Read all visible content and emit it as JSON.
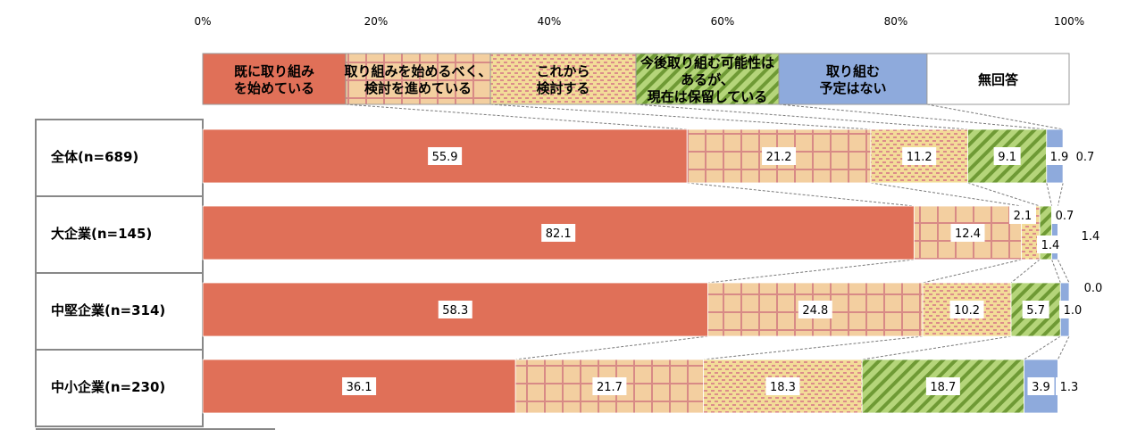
{
  "chart_data": {
    "type": "bar",
    "orientation": "horizontal",
    "stacked": true,
    "xlim": [
      0,
      100
    ],
    "tick_labels": [
      "0%",
      "20%",
      "40%",
      "60%",
      "80%",
      "100%"
    ],
    "categories": [
      "全体(n=689)",
      "大企業(n=145)",
      "中堅企業(n=314)",
      "中小企業(n=230)"
    ],
    "legend_placement": "top",
    "series": [
      {
        "name": "既に取り組みを始めている",
        "legend_lines": [
          "既に取り組み",
          "を始めている"
        ],
        "color": "#e07058",
        "pattern": "solid",
        "values": [
          55.9,
          82.1,
          58.3,
          36.1
        ]
      },
      {
        "name": "取り組みを始めるべく、検討を進めている",
        "legend_lines": [
          "取り組みを始めるべく、",
          "検討を進めている"
        ],
        "color": "#f3cfa0",
        "pattern": "grid",
        "values": [
          21.2,
          12.4,
          24.8,
          21.7
        ]
      },
      {
        "name": "これから検討する",
        "legend_lines": [
          "これから",
          "検討する"
        ],
        "color": "#f3dc98",
        "pattern": "dots",
        "values": [
          11.2,
          2.1,
          10.2,
          18.3
        ]
      },
      {
        "name": "今後取り組む可能性はあるが、現在は保留している",
        "legend_lines": [
          "今後取り組む可能性は",
          "あるが、",
          "現在は保留している"
        ],
        "color": "#9ec558",
        "pattern": "diagonal",
        "values": [
          9.1,
          1.4,
          5.7,
          18.7
        ]
      },
      {
        "name": "取り組む予定はない",
        "legend_lines": [
          "取り組む",
          "予定はない"
        ],
        "color": "#8eaadc",
        "pattern": "solid",
        "values": [
          1.9,
          0.7,
          1.0,
          3.9
        ]
      },
      {
        "name": "無回答",
        "legend_lines": [
          "無回答"
        ],
        "color": "#ffffff",
        "pattern": "solid",
        "values": [
          0.7,
          1.4,
          0.0,
          1.3
        ]
      }
    ],
    "data_labels": [
      [
        "55.9",
        "21.2",
        "11.2",
        "9.1",
        "1.9",
        "0.7"
      ],
      [
        "82.1",
        "12.4",
        "2.1",
        "1.4",
        "0.7",
        "1.4"
      ],
      [
        "58.3",
        "24.8",
        "10.2",
        "5.7",
        "1.0",
        "0.0"
      ],
      [
        "36.1",
        "21.7",
        "18.3",
        "18.7",
        "3.9",
        "1.3"
      ]
    ]
  }
}
